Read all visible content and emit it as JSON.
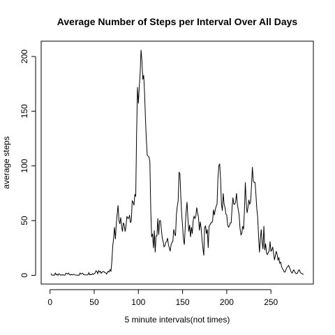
{
  "chart_data": {
    "type": "line",
    "title": "Average Number of Steps per Interval Over All Days",
    "xlabel": "5 minute intervals(not times)",
    "ylabel": "average steps",
    "xlim": [
      -10,
      298
    ],
    "ylim": [
      -8,
      214
    ],
    "xticks": [
      0,
      50,
      100,
      150,
      200,
      250
    ],
    "yticks": [
      0,
      50,
      100,
      150,
      200
    ],
    "grid": false,
    "legend": "none",
    "line_color": "#000000",
    "series": [
      {
        "values": [
          1.7,
          0.3,
          0.1,
          0.2,
          0.1,
          2.1,
          0.5,
          0.9,
          0,
          1.5,
          0.8,
          0.1,
          0.5,
          0.2,
          0.6,
          0.1,
          0.1,
          1.9,
          1.5,
          1.1,
          2.0,
          0.8,
          0.2,
          0.9,
          0.4,
          0.5,
          0.9,
          0.4,
          0.3,
          0.1,
          0.1,
          0.2,
          0.1,
          2.1,
          1.2,
          1.5,
          1.9,
          0.6,
          0.5,
          0.4,
          0.4,
          0.4,
          0.6,
          2.4,
          0.4,
          0.9,
          0.5,
          1.5,
          0.9,
          1.3,
          2.0,
          4.1,
          3.5,
          1.5,
          4.2,
          2.9,
          3.6,
          1.8,
          2.9,
          3.4,
          3.4,
          2.4,
          2.3,
          1.2,
          2.5,
          3.8,
          3.0,
          5.3,
          3.9,
          13.0,
          27.0,
          34.0,
          44.0,
          33.0,
          47.0,
          56.0,
          64.0,
          50.0,
          47.0,
          53.0,
          45.0,
          40.0,
          48.0,
          46.0,
          40.0,
          45.0,
          54.0,
          52.0,
          52.0,
          55.0,
          48.0,
          50.0,
          68.0,
          67.0,
          64.0,
          74.0,
          72.0,
          130.0,
          172.0,
          157.0,
          172.0,
          185.0,
          206.0,
          196.0,
          179.0,
          183.0,
          167.0,
          143.0,
          124.0,
          110.0,
          109.0,
          108.0,
          104.0,
          60.0,
          35.0,
          38.0,
          25.0,
          41.0,
          21.0,
          36.0,
          36.0,
          52.0,
          37.0,
          50.0,
          50.0,
          42.0,
          34.0,
          31.0,
          26.0,
          27.0,
          30.0,
          31.0,
          34.0,
          28.0,
          25.0,
          22.0,
          28.0,
          30.0,
          31.0,
          42.0,
          38.0,
          36.0,
          55.0,
          63.0,
          68.0,
          94.0,
          93.0,
          72.0,
          56.0,
          45.0,
          33.0,
          28.0,
          44.0,
          58.0,
          67.0,
          53.0,
          40.0,
          46.0,
          35.0,
          44.0,
          38.0,
          50.0,
          54.0,
          52.0,
          54.0,
          62.0,
          57.0,
          53.0,
          41.0,
          49.0,
          43.0,
          33.0,
          25.0,
          18.0,
          44.0,
          45.0,
          38.0,
          42.0,
          25.0,
          45.0,
          46.0,
          48.0,
          48.0,
          50.0,
          60.0,
          55.0,
          60.0,
          63.0,
          65.0,
          88.0,
          100.0,
          102.0,
          88.0,
          65.0,
          59.0,
          75.0,
          65.0,
          62.0,
          56.0,
          55.0,
          46.0,
          44.0,
          45.0,
          48.0,
          48.0,
          62.0,
          71.0,
          65.0,
          65.0,
          67.0,
          75.0,
          65.0,
          60.0,
          55.0,
          43.0,
          37.0,
          38.0,
          45.0,
          42.0,
          59.0,
          85.0,
          67.0,
          57.0,
          62.0,
          69.0,
          65.0,
          67.0,
          82.0,
          99.0,
          86.0,
          85.0,
          85.0,
          74.0,
          61.0,
          53.0,
          36.0,
          21.0,
          33.0,
          42.0,
          30.0,
          24.0,
          45.0,
          23.0,
          29.0,
          20.0,
          19.0,
          21.0,
          22.0,
          31.0,
          22.0,
          23.0,
          26.0,
          20.0,
          14.0,
          18.0,
          22.0,
          19.0,
          14.0,
          16.0,
          11.0,
          12.0,
          8.0,
          6.0,
          5.0,
          3.0,
          3.0,
          5.0,
          7.0,
          8.0,
          9.0,
          7.0,
          5.0,
          3.0,
          2.0,
          4.0,
          5.0,
          3.0,
          2.0,
          1.5,
          2.0,
          4.0,
          5.0,
          3.0,
          2.0,
          1.5,
          1.0,
          1.0
        ]
      }
    ]
  }
}
